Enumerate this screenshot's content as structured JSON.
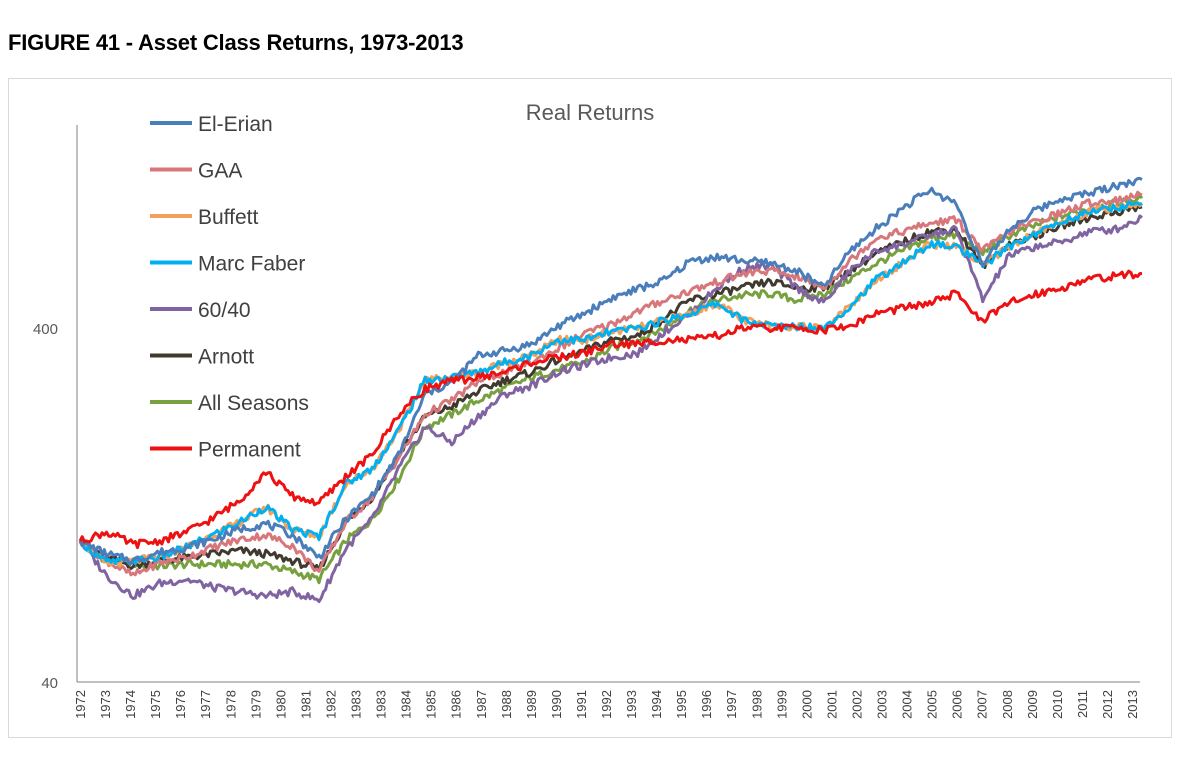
{
  "figure_title": "FIGURE 41 - Asset Class Returns, 1973-2013",
  "chart_data": {
    "type": "line",
    "title": "Real Returns",
    "xlabel": "",
    "ylabel": "",
    "y_scale": "log",
    "ylim": [
      40,
      1000
    ],
    "y_ticks": [
      "40",
      "400"
    ],
    "grid": false,
    "legend_position": "top-left",
    "x_ticks": [
      "1972",
      "1973",
      "1974",
      "1975",
      "1976",
      "1977",
      "1978",
      "1979",
      "1980",
      "1981",
      "1982",
      "1983",
      "1983",
      "1984",
      "1985",
      "1986",
      "1987",
      "1988",
      "1989",
      "1990",
      "1991",
      "1992",
      "1993",
      "1994",
      "1995",
      "1996",
      "1997",
      "1998",
      "1999",
      "2000",
      "2001",
      "2002",
      "2003",
      "2004",
      "2005",
      "2006",
      "2007",
      "2008",
      "2009",
      "2010",
      "2011",
      "2012",
      "2013"
    ],
    "x": [
      1973,
      1974,
      1975,
      1976,
      1977,
      1978,
      1979,
      1980,
      1981,
      1982,
      1983,
      1984,
      1985,
      1986,
      1987,
      1988,
      1989,
      1990,
      1991,
      1992,
      1993,
      1994,
      1995,
      1996,
      1997,
      1998,
      1999,
      2000,
      2001,
      2002,
      2003,
      2004,
      2005,
      2006,
      2007,
      2008,
      2009,
      2010,
      2011,
      2012,
      2013
    ],
    "series": [
      {
        "name": "El-Erian",
        "color": "#4a7ebb",
        "values": [
          100,
          92,
          88,
          93,
          96,
          101,
          108,
          112,
          104,
          90,
          115,
          135,
          175,
          260,
          280,
          335,
          345,
          360,
          405,
          440,
          485,
          515,
          545,
          620,
          635,
          620,
          610,
          580,
          520,
          660,
          765,
          875,
          980,
          900,
          600,
          760,
          860,
          930,
          960,
          1010,
          1050
        ]
      },
      {
        "name": "GAA",
        "color": "#d8777b",
        "values": [
          100,
          88,
          80,
          87,
          90,
          96,
          101,
          104,
          97,
          82,
          113,
          133,
          172,
          228,
          250,
          283,
          300,
          320,
          350,
          385,
          410,
          445,
          480,
          510,
          540,
          570,
          580,
          560,
          520,
          620,
          720,
          750,
          790,
          810,
          660,
          750,
          800,
          850,
          900,
          920,
          950
        ]
      },
      {
        "name": "Buffett",
        "color": "#f5a05a",
        "values": [
          100,
          86,
          88,
          90,
          96,
          104,
          113,
          125,
          108,
          103,
          145,
          160,
          206,
          285,
          290,
          300,
          320,
          335,
          370,
          370,
          390,
          400,
          420,
          440,
          470,
          420,
          405,
          405,
          400,
          460,
          550,
          610,
          690,
          680,
          600,
          680,
          740,
          800,
          850,
          875,
          900
        ]
      },
      {
        "name": "Marc Faber",
        "color": "#00b0f0",
        "values": [
          100,
          87,
          88,
          90,
          96,
          104,
          113,
          125,
          108,
          103,
          145,
          160,
          206,
          285,
          290,
          300,
          320,
          335,
          370,
          370,
          390,
          400,
          420,
          440,
          470,
          420,
          405,
          405,
          400,
          460,
          550,
          610,
          690,
          680,
          600,
          680,
          740,
          800,
          850,
          875,
          900
        ]
      },
      {
        "name": "60/40",
        "color": "#8064a2",
        "values": [
          100,
          80,
          70,
          76,
          78,
          74,
          72,
          70,
          72,
          68,
          95,
          115,
          160,
          210,
          190,
          225,
          260,
          275,
          300,
          315,
          330,
          340,
          390,
          440,
          520,
          590,
          600,
          520,
          470,
          580,
          660,
          690,
          730,
          760,
          480,
          640,
          680,
          700,
          750,
          760,
          820
        ]
      },
      {
        "name": "Arnott",
        "color": "#403a2e",
        "values": [
          100,
          90,
          85,
          88,
          90,
          92,
          94,
          92,
          88,
          83,
          113,
          133,
          175,
          225,
          240,
          265,
          285,
          300,
          325,
          345,
          370,
          380,
          425,
          480,
          500,
          520,
          540,
          520,
          520,
          580,
          650,
          700,
          750,
          760,
          600,
          690,
          730,
          780,
          820,
          850,
          880
        ]
      },
      {
        "name": "All Seasons",
        "color": "#77a13f",
        "values": [
          100,
          88,
          86,
          85,
          86,
          86,
          86,
          86,
          82,
          78,
          100,
          115,
          150,
          210,
          228,
          250,
          270,
          290,
          305,
          320,
          350,
          370,
          400,
          450,
          480,
          495,
          500,
          480,
          500,
          550,
          610,
          660,
          720,
          730,
          650,
          730,
          780,
          830,
          870,
          900,
          930
        ]
      },
      {
        "name": "Permanent",
        "color": "#ee1111",
        "values": [
          100,
          106,
          98,
          100,
          106,
          116,
          130,
          157,
          134,
          128,
          152,
          175,
          228,
          270,
          283,
          290,
          300,
          320,
          330,
          340,
          360,
          360,
          370,
          370,
          380,
          400,
          400,
          400,
          395,
          405,
          440,
          455,
          470,
          500,
          420,
          470,
          500,
          520,
          550,
          560,
          570
        ]
      }
    ]
  }
}
